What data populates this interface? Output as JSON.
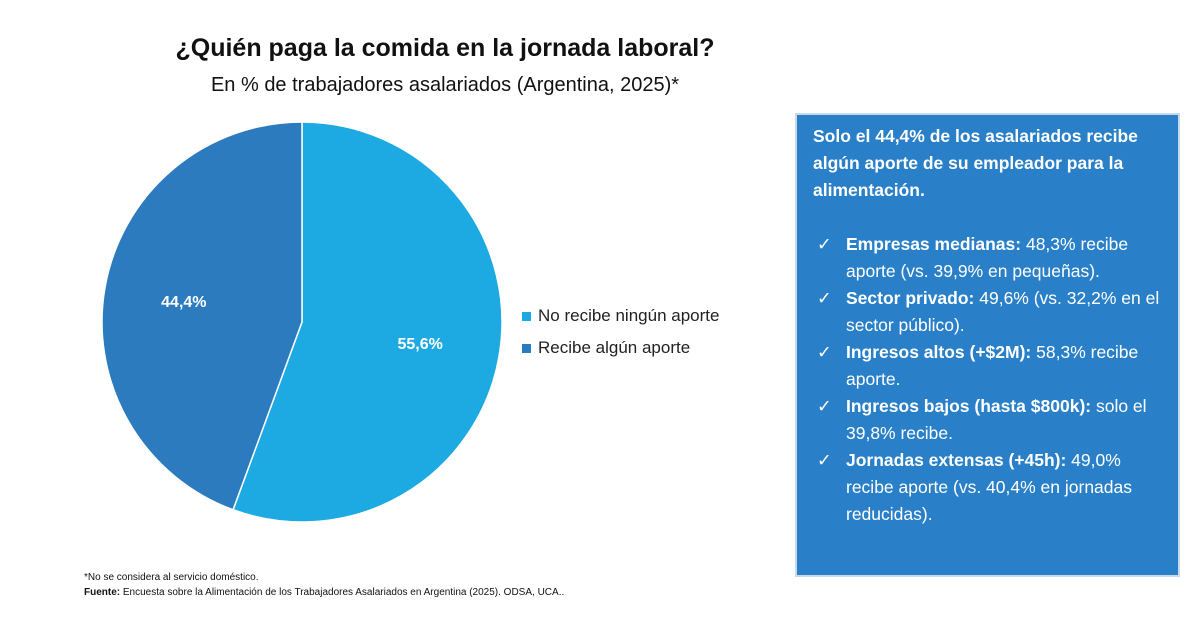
{
  "title": "¿Quién paga la comida en la jornada laboral?",
  "subtitle": "En % de trabajadores asalariados (Argentina, 2025)*",
  "chart_data": {
    "type": "pie",
    "categories": [
      "No recibe ningún aporte",
      "Recibe algún aporte"
    ],
    "values": [
      55.6,
      44.4
    ],
    "data_labels": [
      "55,6%",
      "44,4%"
    ],
    "colors": [
      "#1DA9E2",
      "#2B7BBE"
    ],
    "legend_position": "right"
  },
  "box": {
    "heading": "Solo el 44,4% de los asalariados recibe algún aporte de su empleador para la alimentación.",
    "check_icon": "check-icon",
    "items": [
      {
        "bold": "Empresas medianas:",
        "text": " 48,3% recibe aporte (vs. 39,9% en pequeñas)."
      },
      {
        "bold": "Sector privado:",
        "text": " 49,6% (vs. 32,2% en el sector público)."
      },
      {
        "bold": "Ingresos altos (+$2M):",
        "text": " 58,3% recibe aporte."
      },
      {
        "bold": "Ingresos bajos (hasta $800k):",
        "text": " solo el 39,8% recibe."
      },
      {
        "bold": "Jornadas extensas (+45h):",
        "text": " 49,0% recibe aporte (vs. 40,4% en jornadas reducidas)."
      }
    ]
  },
  "footnote": "*No se considera al servicio doméstico.",
  "source_label": "Fuente:",
  "source_text": " Encuesta sobre la Alimentación de los Trabajadores Asalariados en Argentina (2025). ODSA, UCA.."
}
